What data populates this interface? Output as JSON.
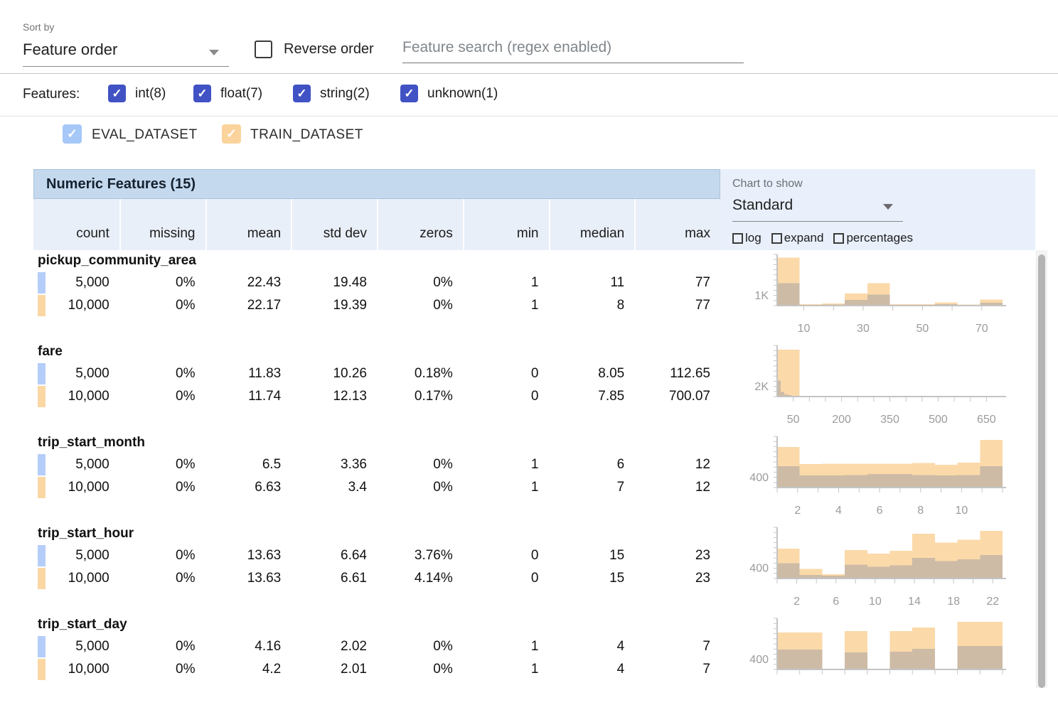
{
  "toolbar": {
    "sort_by_label": "Sort by",
    "sort_value": "Feature order",
    "reverse_label": "Reverse order",
    "search_placeholder": "Feature search (regex enabled)"
  },
  "filters": {
    "label": "Features:",
    "items": [
      {
        "label": "int(8)",
        "checked": true
      },
      {
        "label": "float(7)",
        "checked": true
      },
      {
        "label": "string(2)",
        "checked": true
      },
      {
        "label": "unknown(1)",
        "checked": true
      }
    ]
  },
  "datasets": [
    {
      "name": "EVAL_DATASET",
      "checked": true,
      "color": "#a6c8f8",
      "swatch": "#b5cdf9"
    },
    {
      "name": "TRAIN_DATASET",
      "checked": true,
      "color": "#fbd39c",
      "swatch": "#fad7a3"
    }
  ],
  "table": {
    "title": "Numeric Features (15)",
    "columns": [
      "count",
      "missing",
      "mean",
      "std dev",
      "zeros",
      "min",
      "median",
      "max"
    ]
  },
  "chart_controls": {
    "label": "Chart to show",
    "value": "Standard",
    "options": [
      {
        "label": "log",
        "checked": false
      },
      {
        "label": "expand",
        "checked": false
      },
      {
        "label": "percentages",
        "checked": false
      }
    ]
  },
  "features": [
    {
      "name": "pickup_community_area",
      "rows": [
        [
          "5,000",
          "0%",
          "22.43",
          "19.48",
          "0%",
          "1",
          "11",
          "77"
        ],
        [
          "10,000",
          "0%",
          "22.17",
          "19.39",
          "0%",
          "1",
          "8",
          "77"
        ]
      ]
    },
    {
      "name": "fare",
      "rows": [
        [
          "5,000",
          "0%",
          "11.83",
          "10.26",
          "0.18%",
          "0",
          "8.05",
          "112.65"
        ],
        [
          "10,000",
          "0%",
          "11.74",
          "12.13",
          "0.17%",
          "0",
          "7.85",
          "700.07"
        ]
      ]
    },
    {
      "name": "trip_start_month",
      "rows": [
        [
          "5,000",
          "0%",
          "6.5",
          "3.36",
          "0%",
          "1",
          "6",
          "12"
        ],
        [
          "10,000",
          "0%",
          "6.63",
          "3.4",
          "0%",
          "1",
          "7",
          "12"
        ]
      ]
    },
    {
      "name": "trip_start_hour",
      "rows": [
        [
          "5,000",
          "0%",
          "13.63",
          "6.64",
          "3.76%",
          "0",
          "15",
          "23"
        ],
        [
          "10,000",
          "0%",
          "13.63",
          "6.61",
          "4.14%",
          "0",
          "15",
          "23"
        ]
      ]
    },
    {
      "name": "trip_start_day",
      "rows": [
        [
          "5,000",
          "0%",
          "4.16",
          "2.02",
          "0%",
          "1",
          "4",
          "7"
        ],
        [
          "10,000",
          "0%",
          "4.2",
          "2.01",
          "0%",
          "1",
          "4",
          "7"
        ]
      ]
    }
  ],
  "chart_data": [
    {
      "type": "histogram",
      "feature": "pickup_community_area",
      "xlim": [
        1,
        77
      ],
      "ymax": 4800,
      "ylabel": {
        "text": "1K",
        "value": 1000
      },
      "xticks": {
        "labeled": [
          10,
          30,
          50,
          70
        ],
        "minor": [
          10,
          20,
          30,
          40,
          50,
          60,
          70
        ]
      },
      "series": [
        {
          "name": "EVAL_DATASET",
          "color": "#4285f4",
          "opacity": 0.4,
          "bucket_start": 1,
          "bucket_width": 7.6,
          "counts": [
            2100,
            45,
            90,
            530,
            1050,
            45,
            45,
            130,
            45,
            270
          ]
        },
        {
          "name": "TRAIN_DATASET",
          "color": "#f5a028",
          "opacity": 0.4,
          "bucket_start": 1,
          "bucket_width": 7.6,
          "counts": [
            4500,
            130,
            200,
            1130,
            2100,
            130,
            130,
            290,
            90,
            580
          ]
        }
      ]
    },
    {
      "type": "histogram",
      "feature": "fare",
      "xlim": [
        0,
        700
      ],
      "ymax": 9600,
      "ylabel": {
        "text": "2K",
        "value": 2000
      },
      "xticks": {
        "labeled": [
          50,
          200,
          350,
          500,
          650
        ],
        "minor": [
          50,
          100,
          150,
          200,
          250,
          300,
          350,
          400,
          450,
          500,
          550,
          600,
          650
        ]
      },
      "series": [
        {
          "name": "EVAL_DATASET",
          "color": "#4285f4",
          "opacity": 0.4,
          "bucket_start": 0,
          "bucket_width": 11.3,
          "counts": [
            3000,
            900,
            400,
            250,
            150,
            100,
            80,
            60,
            40,
            20
          ]
        },
        {
          "name": "TRAIN_DATASET",
          "color": "#f5a028",
          "opacity": 0.4,
          "bucket_start": 0,
          "bucket_width": 70,
          "counts": [
            8800,
            60,
            40,
            30,
            25,
            20,
            20,
            15,
            15,
            10
          ]
        }
      ]
    },
    {
      "type": "histogram",
      "feature": "trip_start_month",
      "xlim": [
        1,
        12
      ],
      "ymax": 1925,
      "ylabel": {
        "text": "400",
        "value": 400
      },
      "xticks": {
        "labeled": [
          2,
          4,
          6,
          8,
          10
        ],
        "minor": [
          1,
          2,
          3,
          4,
          5,
          6,
          7,
          8,
          9,
          10,
          11,
          12
        ]
      },
      "series": [
        {
          "name": "EVAL_DATASET",
          "color": "#4285f4",
          "opacity": 0.4,
          "bucket_start": 1,
          "bucket_width": 1.1,
          "counts": [
            800,
            455,
            460,
            470,
            510,
            510,
            465,
            460,
            465,
            800
          ]
        },
        {
          "name": "TRAIN_DATASET",
          "color": "#f5a028",
          "opacity": 0.4,
          "bucket_start": 1,
          "bucket_width": 1.1,
          "counts": [
            1520,
            880,
            890,
            900,
            890,
            890,
            920,
            860,
            940,
            1790
          ]
        }
      ]
    },
    {
      "type": "histogram",
      "feature": "trip_start_hour",
      "xlim": [
        0,
        23
      ],
      "ymax": 1870,
      "ylabel": {
        "text": "400",
        "value": 400
      },
      "xticks": {
        "labeled": [
          2,
          6,
          10,
          14,
          18,
          22
        ],
        "minor": [
          0,
          2,
          4,
          6,
          8,
          10,
          12,
          14,
          16,
          18,
          20,
          22
        ]
      },
      "series": [
        {
          "name": "EVAL_DATASET",
          "color": "#4285f4",
          "opacity": 0.4,
          "bucket_start": 0,
          "bucket_width": 2.3,
          "counts": [
            560,
            135,
            105,
            505,
            425,
            480,
            750,
            640,
            695,
            855
          ]
        },
        {
          "name": "TRAIN_DATASET",
          "color": "#f5a028",
          "opacity": 0.4,
          "bucket_start": 0,
          "bucket_width": 2.3,
          "counts": [
            1095,
            345,
            160,
            1040,
            910,
            1015,
            1630,
            1310,
            1415,
            1735
          ]
        }
      ]
    },
    {
      "type": "histogram",
      "feature": "trip_start_day",
      "xlim": [
        1,
        7
      ],
      "ymax": 1925,
      "ylabel": {
        "text": "400",
        "value": 400
      },
      "xticks": {
        "labeled": [],
        "minor": [
          1,
          1.6,
          2.2,
          2.8,
          3.4,
          4,
          4.6,
          5.2,
          5.8,
          6.4,
          7
        ]
      },
      "series": [
        {
          "name": "EVAL_DATASET",
          "color": "#4285f4",
          "opacity": 0.4,
          "bucket_start": 1,
          "bucket_width": 0.6,
          "counts": [
            750,
            750,
            0,
            640,
            0,
            670,
            775,
            0,
            880,
            880
          ]
        },
        {
          "name": "TRAIN_DATASET",
          "color": "#f5a028",
          "opacity": 0.4,
          "bucket_start": 1,
          "bucket_width": 0.6,
          "counts": [
            1390,
            1390,
            0,
            1440,
            0,
            1440,
            1575,
            0,
            1790,
            1790
          ]
        }
      ]
    }
  ]
}
